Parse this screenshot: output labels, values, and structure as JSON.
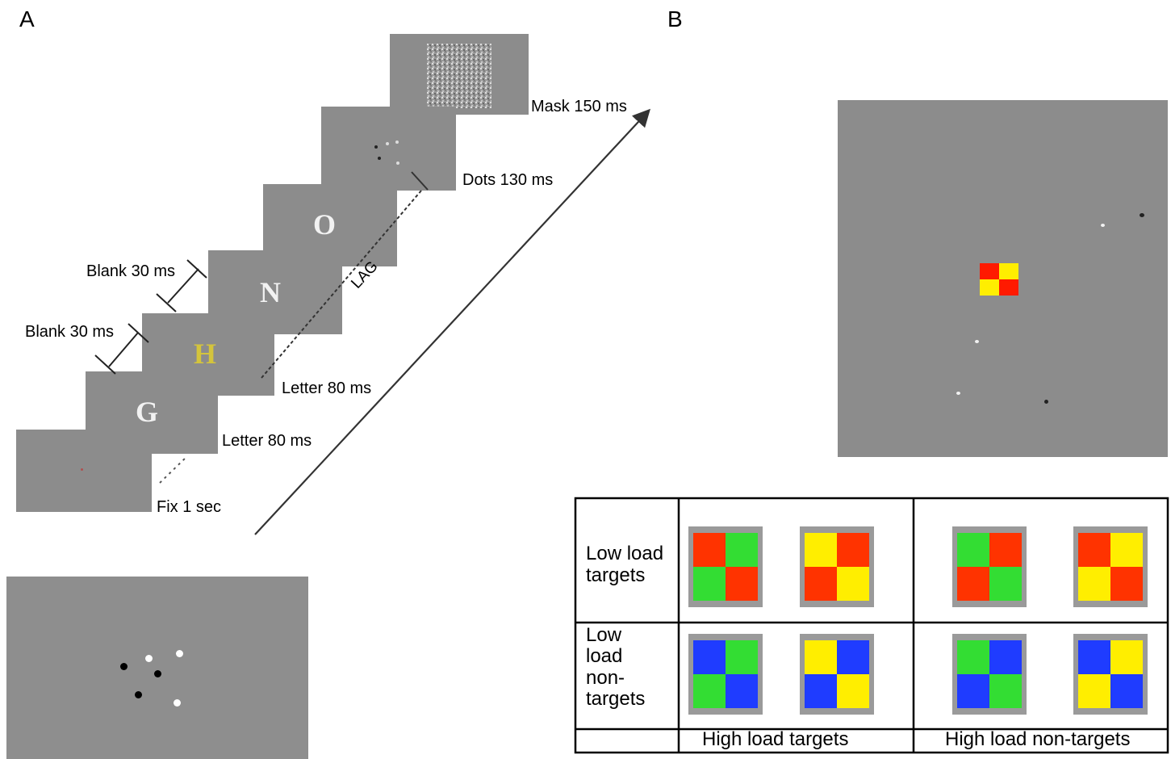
{
  "panel_a": {
    "letter": "A",
    "labels": {
      "mask": "Mask 150 ms",
      "dots": "Dots 130 ms",
      "blank1": "Blank 30 ms",
      "blank2": "Blank 30 ms",
      "letter_late": "Letter 80 ms",
      "letter_early": "Letter 80 ms",
      "fix": "Fix  1 sec",
      "lag": "LAG"
    },
    "frame_letters": {
      "g": "G",
      "h": "H",
      "n": "N",
      "o": "O"
    },
    "colors": {
      "frame": "#8c8c8c",
      "target_letter": "#d4c43c",
      "letter": "#f2f2f2"
    }
  },
  "panel_b": {
    "letter": "B",
    "table": {
      "row_labels": [
        "Low load targets",
        "Low load non-targets"
      ],
      "row_label_lines": [
        [
          "Low load",
          "targets"
        ],
        [
          "Low",
          "load",
          "non-",
          "targets"
        ]
      ],
      "column_labels": [
        "High load targets",
        "High load non-targets"
      ],
      "swatches": [
        [
          [
            "#ff3300",
            "#33dd33",
            "#33dd33",
            "#ff3300"
          ],
          [
            "#ffee00",
            "#ff3300",
            "#ff3300",
            "#ffee00"
          ],
          [
            "#33dd33",
            "#ff3300",
            "#ff3300",
            "#33dd33"
          ],
          [
            "#ff3300",
            "#ffee00",
            "#ffee00",
            "#ff3300"
          ]
        ],
        [
          [
            "#1f3cff",
            "#33dd33",
            "#33dd33",
            "#1f3cff"
          ],
          [
            "#ffee00",
            "#1f3cff",
            "#1f3cff",
            "#ffee00"
          ],
          [
            "#33dd33",
            "#1f3cff",
            "#1f3cff",
            "#33dd33"
          ],
          [
            "#1f3cff",
            "#ffee00",
            "#ffee00",
            "#1f3cff"
          ]
        ]
      ]
    },
    "display_center_colors": [
      "#ff1a00",
      "#ffee00",
      "#ffee00",
      "#ff1a00"
    ]
  }
}
